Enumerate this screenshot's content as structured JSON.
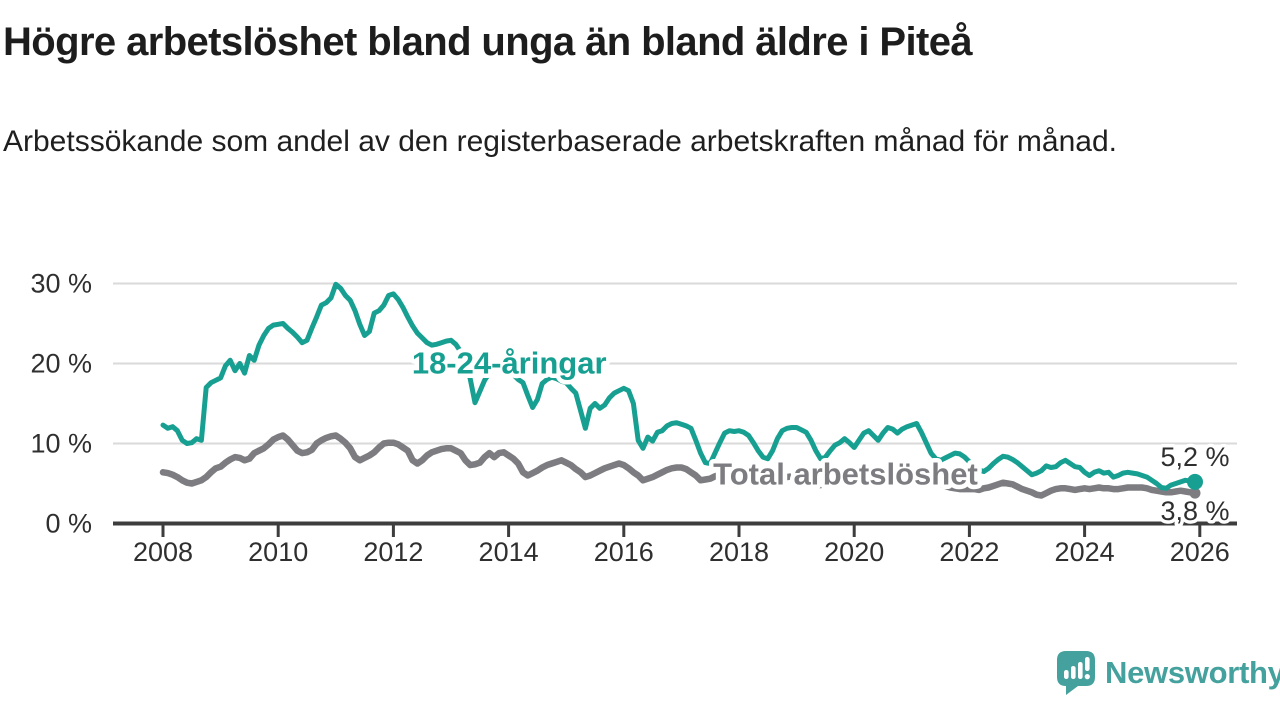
{
  "header": {
    "title": "Högre arbetslöshet bland unga än bland äldre i Piteå",
    "subtitle": "Arbetssökande som andel av den registerbaserade arbetskraften månad för månad."
  },
  "footer": {
    "brand": "Newsworthy"
  },
  "colors": {
    "accent_teal": "#17a092",
    "line_gray": "#7d7d81",
    "text_dark": "#1d1d1d",
    "axis_text": "#2f2f2f",
    "grid": "#dadada",
    "axis": "#3d3d3d",
    "logo_teal": "#45a19d",
    "background": "#ffffff"
  },
  "chart_data": {
    "type": "line",
    "unit": "%",
    "frequency": "monthly",
    "x_start_year": 2008,
    "xlim": [
      2007.1,
      2026.65
    ],
    "ylim": [
      0,
      32
    ],
    "grid": "horizontal",
    "xticks": [
      2008,
      2010,
      2012,
      2014,
      2016,
      2018,
      2020,
      2022,
      2024,
      2026
    ],
    "yticks": [
      0,
      10,
      20,
      30
    ],
    "ytick_labels": [
      "0 %",
      "10 %",
      "20 %",
      "30 %"
    ],
    "series": [
      {
        "name": "18-24-åringar",
        "color": "#17a092",
        "label_anchor": {
          "year": 2012.32,
          "value": 18.75
        },
        "end_label": {
          "text": "5,2 %",
          "dy": -16
        },
        "end_dot_radius": 8,
        "values": [
          12.3,
          11.9,
          12.1,
          11.6,
          10.4,
          10.0,
          10.1,
          10.6,
          10.4,
          17.0,
          17.6,
          17.9,
          18.2,
          19.7,
          20.4,
          19.1,
          20.0,
          18.8,
          21.0,
          20.4,
          22.3,
          23.5,
          24.4,
          24.8,
          24.9,
          25.0,
          24.4,
          23.9,
          23.3,
          22.6,
          22.9,
          24.4,
          25.8,
          27.3,
          27.6,
          28.2,
          29.9,
          29.4,
          28.5,
          27.9,
          26.6,
          24.9,
          23.5,
          24.0,
          26.3,
          26.6,
          27.3,
          28.5,
          28.7,
          28.0,
          27.0,
          25.8,
          24.7,
          23.8,
          23.2,
          22.6,
          22.3,
          22.4,
          22.6,
          22.8,
          22.9,
          22.4,
          21.5,
          20.4,
          18.1,
          15.1,
          16.5,
          17.9,
          18.8,
          19.4,
          19.6,
          19.2,
          19.0,
          18.6,
          18.0,
          17.6,
          16.0,
          14.5,
          15.5,
          17.5,
          18.0,
          18.3,
          18.1,
          17.8,
          17.6,
          16.9,
          16.3,
          14.1,
          11.9,
          14.4,
          15.0,
          14.4,
          14.8,
          15.7,
          16.3,
          16.6,
          16.9,
          16.6,
          15.0,
          10.4,
          9.4,
          10.8,
          10.3,
          11.4,
          11.6,
          12.2,
          12.5,
          12.6,
          12.4,
          12.2,
          11.9,
          10.4,
          8.8,
          7.6,
          7.5,
          8.8,
          10.1,
          11.3,
          11.6,
          11.5,
          11.6,
          11.4,
          11.0,
          10.1,
          9.1,
          8.3,
          8.1,
          9.1,
          10.6,
          11.6,
          11.9,
          12.0,
          12.0,
          11.7,
          11.4,
          10.4,
          9.1,
          8.1,
          8.3,
          9.1,
          9.8,
          10.1,
          10.6,
          10.1,
          9.5,
          10.4,
          11.3,
          11.6,
          11.0,
          10.4,
          11.3,
          12.0,
          11.8,
          11.3,
          11.8,
          12.1,
          12.3,
          12.5,
          11.4,
          10.1,
          8.8,
          8.1,
          7.9,
          8.2,
          8.5,
          8.8,
          8.7,
          8.3,
          7.7,
          7.1,
          6.7,
          6.5,
          6.9,
          7.5,
          8.0,
          8.4,
          8.3,
          8.0,
          7.6,
          7.1,
          6.6,
          6.1,
          6.3,
          6.6,
          7.2,
          7.0,
          7.1,
          7.6,
          7.9,
          7.5,
          7.1,
          7.0,
          6.4,
          6.0,
          6.4,
          6.6,
          6.3,
          6.4,
          5.8,
          6.0,
          6.3,
          6.4,
          6.3,
          6.2,
          6.0,
          5.8,
          5.4,
          5.0,
          4.5,
          4.4,
          4.8,
          5.0,
          5.2,
          5.4,
          5.3,
          5.2
        ]
      },
      {
        "name": "Total arbetslöshet",
        "color": "#7d7d81",
        "label_anchor": {
          "year": 2017.55,
          "value": 4.9
        },
        "end_label": {
          "text": "3,8 %",
          "dy": 27
        },
        "end_dot_radius": 5.5,
        "values": [
          6.4,
          6.3,
          6.1,
          5.8,
          5.4,
          5.1,
          5.0,
          5.2,
          5.4,
          5.8,
          6.4,
          6.9,
          7.1,
          7.6,
          8.0,
          8.3,
          8.2,
          7.9,
          8.1,
          8.8,
          9.1,
          9.4,
          9.9,
          10.5,
          10.8,
          11.0,
          10.5,
          9.8,
          9.1,
          8.8,
          8.9,
          9.2,
          10.0,
          10.4,
          10.7,
          10.9,
          11.0,
          10.6,
          10.1,
          9.4,
          8.3,
          7.9,
          8.2,
          8.5,
          8.9,
          9.5,
          10.0,
          10.1,
          10.1,
          9.9,
          9.5,
          9.1,
          7.9,
          7.5,
          7.9,
          8.5,
          8.9,
          9.1,
          9.3,
          9.4,
          9.4,
          9.1,
          8.8,
          7.9,
          7.3,
          7.4,
          7.6,
          8.3,
          8.8,
          8.3,
          8.8,
          8.9,
          8.5,
          8.1,
          7.5,
          6.4,
          6.0,
          6.3,
          6.6,
          7.0,
          7.3,
          7.5,
          7.7,
          7.9,
          7.6,
          7.3,
          6.8,
          6.4,
          5.8,
          6.0,
          6.3,
          6.6,
          6.9,
          7.1,
          7.3,
          7.5,
          7.3,
          6.9,
          6.4,
          6.0,
          5.4,
          5.6,
          5.8,
          6.1,
          6.4,
          6.7,
          6.9,
          7.0,
          7.0,
          6.8,
          6.4,
          6.0,
          5.4,
          5.5,
          5.6,
          5.9,
          6.1,
          6.3,
          6.4,
          6.4,
          6.3,
          6.2,
          5.9,
          5.5,
          5.0,
          4.9,
          5.1,
          5.3,
          5.5,
          5.7,
          5.8,
          5.9,
          5.9,
          5.8,
          5.5,
          5.2,
          4.9,
          4.8,
          5.0,
          5.2,
          5.4,
          5.5,
          5.6,
          5.7,
          5.7,
          5.7,
          6.0,
          6.5,
          6.8,
          6.8,
          6.8,
          6.8,
          6.7,
          6.6,
          6.6,
          6.6,
          6.5,
          6.4,
          6.1,
          5.8,
          5.4,
          5.1,
          4.9,
          4.7,
          4.5,
          4.4,
          4.3,
          4.3,
          4.3,
          4.3,
          4.2,
          4.4,
          4.5,
          4.7,
          4.9,
          5.1,
          5.0,
          4.9,
          4.6,
          4.3,
          4.1,
          3.9,
          3.6,
          3.5,
          3.8,
          4.1,
          4.3,
          4.4,
          4.4,
          4.3,
          4.2,
          4.3,
          4.4,
          4.3,
          4.4,
          4.5,
          4.4,
          4.4,
          4.3,
          4.3,
          4.4,
          4.5,
          4.5,
          4.5,
          4.5,
          4.4,
          4.2,
          4.1,
          4.0,
          3.9,
          3.9,
          4.0,
          4.1,
          4.0,
          3.9,
          3.8
        ]
      }
    ]
  }
}
